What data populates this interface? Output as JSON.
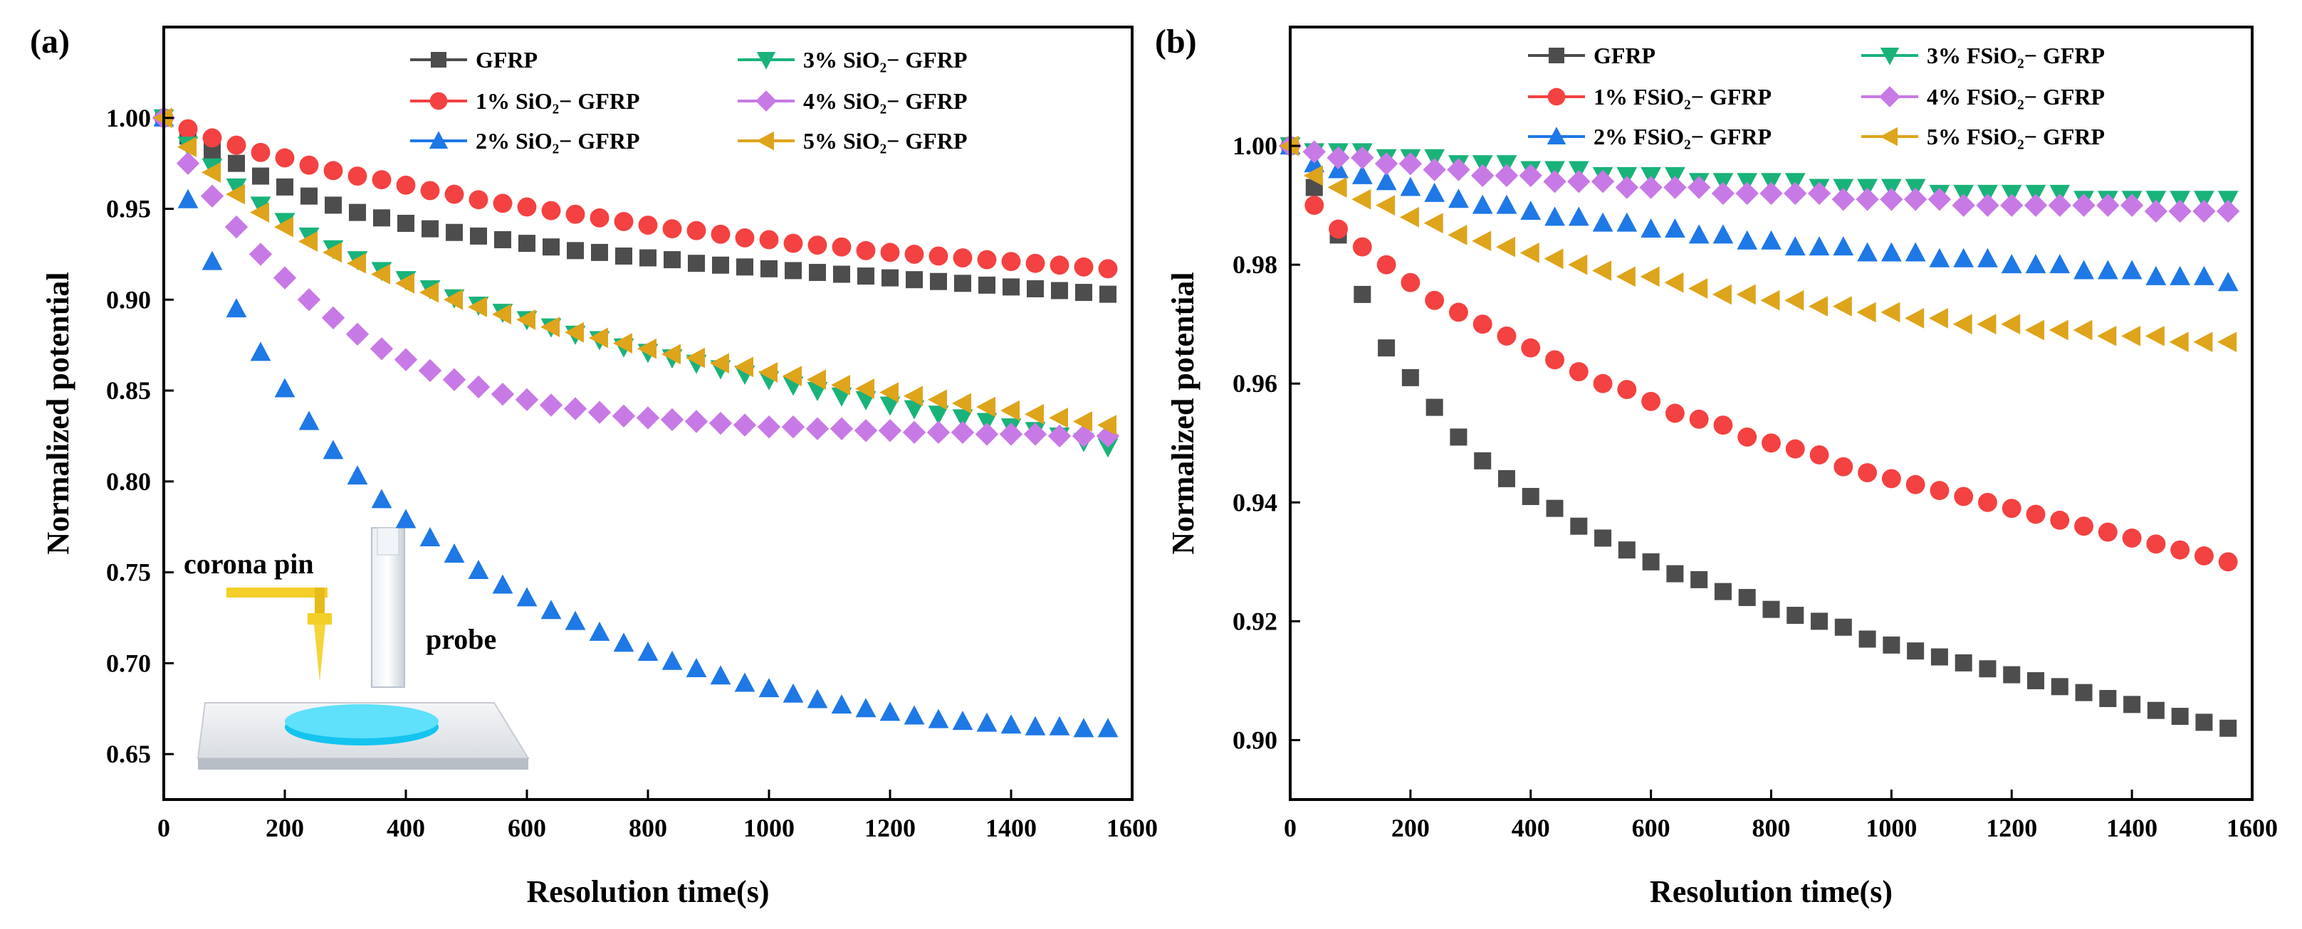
{
  "chart_data": [
    {
      "panel_label": "(a)",
      "type": "scatter",
      "title": "",
      "xlabel": "Resolution time(s)",
      "ylabel": "Normalized potential",
      "xlim": [
        0,
        1600
      ],
      "ylim": [
        0.625,
        1.05
      ],
      "xticks": [
        0,
        200,
        400,
        600,
        800,
        1000,
        1200,
        1400,
        1600
      ],
      "yticks": [
        0.65,
        0.7,
        0.75,
        0.8,
        0.85,
        0.9,
        0.95,
        1.0
      ],
      "x": [
        0,
        40,
        80,
        120,
        160,
        200,
        240,
        280,
        320,
        360,
        400,
        440,
        480,
        520,
        560,
        600,
        640,
        680,
        720,
        760,
        800,
        840,
        880,
        920,
        960,
        1000,
        1040,
        1080,
        1120,
        1160,
        1200,
        1240,
        1280,
        1320,
        1360,
        1400,
        1440,
        1480,
        1520,
        1560
      ],
      "legend_position": "top-right",
      "legend_columns": 2,
      "series": [
        {
          "name": "GFRP",
          "marker": "square",
          "color": "#4d4d4d",
          "values": [
            1.0,
            0.99,
            0.982,
            0.975,
            0.968,
            0.962,
            0.957,
            0.952,
            0.948,
            0.945,
            0.942,
            0.939,
            0.937,
            0.935,
            0.933,
            0.931,
            0.929,
            0.927,
            0.926,
            0.924,
            0.923,
            0.922,
            0.92,
            0.919,
            0.918,
            0.917,
            0.916,
            0.915,
            0.914,
            0.913,
            0.912,
            0.911,
            0.91,
            0.909,
            0.908,
            0.907,
            0.906,
            0.905,
            0.904,
            0.903
          ]
        },
        {
          "name": "1% SiO₂− GFRP",
          "marker": "circle",
          "color": "#f44141",
          "values": [
            1.0,
            0.994,
            0.989,
            0.985,
            0.981,
            0.978,
            0.974,
            0.971,
            0.968,
            0.966,
            0.963,
            0.96,
            0.958,
            0.955,
            0.953,
            0.951,
            0.949,
            0.947,
            0.945,
            0.943,
            0.941,
            0.939,
            0.938,
            0.936,
            0.934,
            0.933,
            0.931,
            0.93,
            0.929,
            0.927,
            0.926,
            0.925,
            0.924,
            0.923,
            0.922,
            0.921,
            0.92,
            0.919,
            0.918,
            0.917
          ]
        },
        {
          "name": "2% SiO₂− GFRP",
          "marker": "triangle-up",
          "color": "#1e78e6",
          "values": [
            1.0,
            0.955,
            0.921,
            0.895,
            0.871,
            0.851,
            0.833,
            0.817,
            0.803,
            0.79,
            0.779,
            0.769,
            0.76,
            0.751,
            0.743,
            0.736,
            0.729,
            0.723,
            0.717,
            0.711,
            0.706,
            0.701,
            0.697,
            0.693,
            0.689,
            0.686,
            0.683,
            0.68,
            0.677,
            0.675,
            0.673,
            0.671,
            0.669,
            0.668,
            0.667,
            0.666,
            0.665,
            0.665,
            0.664,
            0.664
          ]
        },
        {
          "name": "3% SiO₂− GFRP",
          "marker": "triangle-down",
          "color": "#19b37a",
          "values": [
            1.0,
            0.985,
            0.973,
            0.962,
            0.952,
            0.943,
            0.935,
            0.928,
            0.922,
            0.916,
            0.911,
            0.906,
            0.901,
            0.897,
            0.893,
            0.889,
            0.885,
            0.881,
            0.878,
            0.874,
            0.871,
            0.868,
            0.865,
            0.862,
            0.859,
            0.856,
            0.853,
            0.85,
            0.847,
            0.845,
            0.842,
            0.84,
            0.837,
            0.835,
            0.833,
            0.83,
            0.828,
            0.825,
            0.822,
            0.819
          ]
        },
        {
          "name": "4% SiO₂− GFRP",
          "marker": "diamond",
          "color": "#c77ae6",
          "values": [
            1.0,
            0.975,
            0.957,
            0.94,
            0.925,
            0.912,
            0.9,
            0.89,
            0.881,
            0.873,
            0.867,
            0.861,
            0.856,
            0.852,
            0.848,
            0.845,
            0.842,
            0.84,
            0.838,
            0.836,
            0.835,
            0.834,
            0.833,
            0.832,
            0.831,
            0.83,
            0.83,
            0.829,
            0.829,
            0.828,
            0.828,
            0.827,
            0.827,
            0.827,
            0.826,
            0.826,
            0.826,
            0.825,
            0.825,
            0.825
          ]
        },
        {
          "name": "5% SiO₂− GFRP",
          "marker": "triangle-left",
          "color": "#dea41b",
          "values": [
            1.0,
            0.984,
            0.97,
            0.958,
            0.948,
            0.94,
            0.932,
            0.926,
            0.92,
            0.914,
            0.909,
            0.904,
            0.9,
            0.896,
            0.892,
            0.889,
            0.885,
            0.882,
            0.879,
            0.876,
            0.873,
            0.87,
            0.868,
            0.865,
            0.863,
            0.86,
            0.858,
            0.856,
            0.853,
            0.851,
            0.849,
            0.847,
            0.845,
            0.843,
            0.841,
            0.839,
            0.837,
            0.835,
            0.833,
            0.831
          ]
        }
      ],
      "inset": {
        "corona_pin_label": "corona pin",
        "probe_label": "probe"
      }
    },
    {
      "panel_label": "(b)",
      "type": "scatter",
      "title": "",
      "xlabel": "Resolution time(s)",
      "ylabel": "Normalized potential",
      "xlim": [
        0,
        1600
      ],
      "ylim": [
        0.89,
        1.02
      ],
      "xticks": [
        0,
        200,
        400,
        600,
        800,
        1000,
        1200,
        1400,
        1600
      ],
      "yticks": [
        0.9,
        0.92,
        0.94,
        0.96,
        0.98,
        1.0
      ],
      "x": [
        0,
        40,
        80,
        120,
        160,
        200,
        240,
        280,
        320,
        360,
        400,
        440,
        480,
        520,
        560,
        600,
        640,
        680,
        720,
        760,
        800,
        840,
        880,
        920,
        960,
        1000,
        1040,
        1080,
        1120,
        1160,
        1200,
        1240,
        1280,
        1320,
        1360,
        1400,
        1440,
        1480,
        1520,
        1560
      ],
      "legend_position": "top-right",
      "legend_columns": 2,
      "series": [
        {
          "name": "GFRP",
          "marker": "square",
          "color": "#4d4d4d",
          "values": [
            1.0,
            0.993,
            0.985,
            0.975,
            0.966,
            0.961,
            0.956,
            0.951,
            0.947,
            0.944,
            0.941,
            0.939,
            0.936,
            0.934,
            0.932,
            0.93,
            0.928,
            0.927,
            0.925,
            0.924,
            0.922,
            0.921,
            0.92,
            0.919,
            0.917,
            0.916,
            0.915,
            0.914,
            0.913,
            0.912,
            0.911,
            0.91,
            0.909,
            0.908,
            0.907,
            0.906,
            0.905,
            0.904,
            0.903,
            0.902
          ]
        },
        {
          "name": "1% FSiO₂− GFRP",
          "marker": "circle",
          "color": "#f44141",
          "values": [
            1.0,
            0.99,
            0.986,
            0.983,
            0.98,
            0.977,
            0.974,
            0.972,
            0.97,
            0.968,
            0.966,
            0.964,
            0.962,
            0.96,
            0.959,
            0.957,
            0.955,
            0.954,
            0.953,
            0.951,
            0.95,
            0.949,
            0.948,
            0.946,
            0.945,
            0.944,
            0.943,
            0.942,
            0.941,
            0.94,
            0.939,
            0.938,
            0.937,
            0.936,
            0.935,
            0.934,
            0.933,
            0.932,
            0.931,
            0.93
          ]
        },
        {
          "name": "2% FSiO₂− GFRP",
          "marker": "triangle-up",
          "color": "#1e78e6",
          "values": [
            1.0,
            0.997,
            0.996,
            0.995,
            0.994,
            0.993,
            0.992,
            0.991,
            0.99,
            0.99,
            0.989,
            0.988,
            0.988,
            0.987,
            0.987,
            0.986,
            0.986,
            0.985,
            0.985,
            0.984,
            0.984,
            0.983,
            0.983,
            0.983,
            0.982,
            0.982,
            0.982,
            0.981,
            0.981,
            0.981,
            0.98,
            0.98,
            0.98,
            0.979,
            0.979,
            0.979,
            0.978,
            0.978,
            0.978,
            0.977
          ]
        },
        {
          "name": "3% FSiO₂− GFRP",
          "marker": "triangle-down",
          "color": "#19b37a",
          "values": [
            1.0,
            0.999,
            0.999,
            0.999,
            0.998,
            0.998,
            0.998,
            0.997,
            0.997,
            0.997,
            0.996,
            0.996,
            0.996,
            0.995,
            0.995,
            0.995,
            0.995,
            0.994,
            0.994,
            0.994,
            0.994,
            0.994,
            0.993,
            0.993,
            0.993,
            0.993,
            0.993,
            0.992,
            0.992,
            0.992,
            0.992,
            0.992,
            0.992,
            0.991,
            0.991,
            0.991,
            0.991,
            0.991,
            0.991,
            0.991
          ]
        },
        {
          "name": "4% FSiO₂− GFRP",
          "marker": "diamond",
          "color": "#c77ae6",
          "values": [
            1.0,
            0.999,
            0.998,
            0.998,
            0.997,
            0.997,
            0.996,
            0.996,
            0.995,
            0.995,
            0.995,
            0.994,
            0.994,
            0.994,
            0.993,
            0.993,
            0.993,
            0.993,
            0.992,
            0.992,
            0.992,
            0.992,
            0.992,
            0.991,
            0.991,
            0.991,
            0.991,
            0.991,
            0.99,
            0.99,
            0.99,
            0.99,
            0.99,
            0.99,
            0.99,
            0.99,
            0.989,
            0.989,
            0.989,
            0.989
          ]
        },
        {
          "name": "5% FSiO₂− GFRP",
          "marker": "triangle-left",
          "color": "#dea41b",
          "values": [
            1.0,
            0.995,
            0.993,
            0.991,
            0.99,
            0.988,
            0.987,
            0.985,
            0.984,
            0.983,
            0.982,
            0.981,
            0.98,
            0.979,
            0.978,
            0.978,
            0.977,
            0.976,
            0.975,
            0.975,
            0.974,
            0.974,
            0.973,
            0.973,
            0.972,
            0.972,
            0.971,
            0.971,
            0.97,
            0.97,
            0.97,
            0.969,
            0.969,
            0.969,
            0.968,
            0.968,
            0.968,
            0.967,
            0.967,
            0.967
          ]
        }
      ]
    }
  ]
}
